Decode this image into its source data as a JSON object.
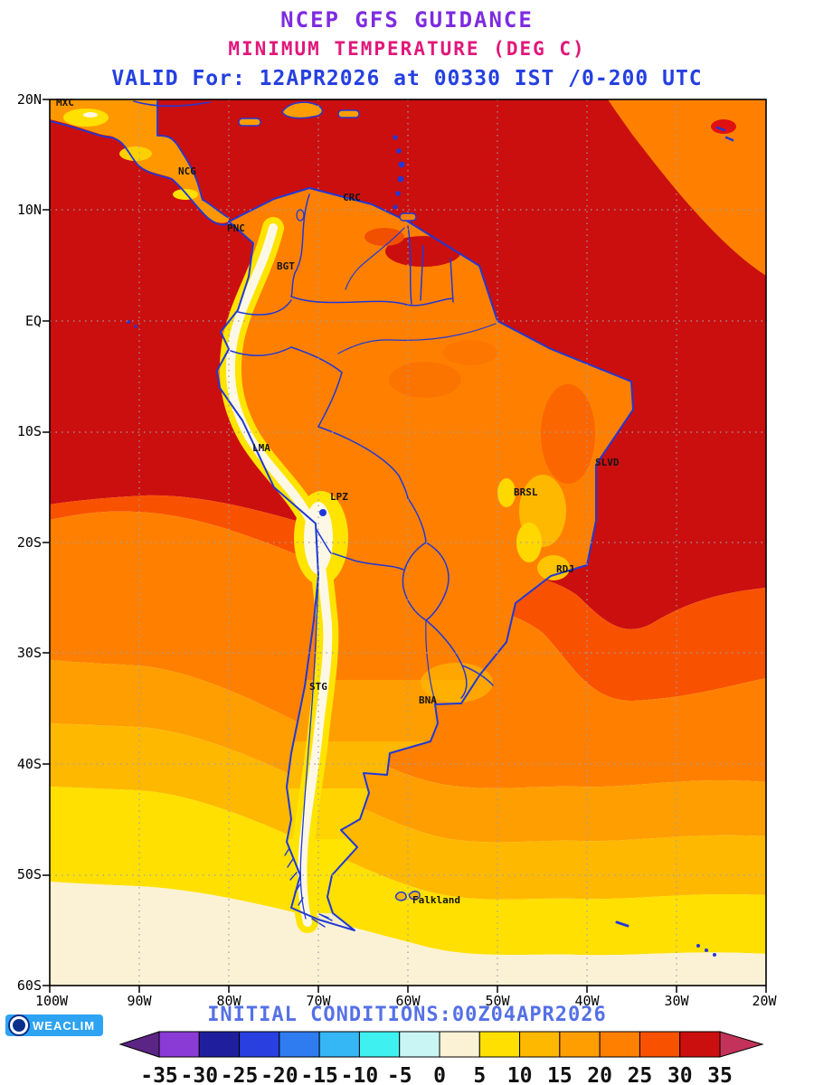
{
  "header": {
    "line1": "NCEP GFS GUIDANCE",
    "line2": "MINIMUM TEMPERATURE (DEG C)",
    "line3": "VALID For: 12APR2026 at 00330 IST /0-200 UTC",
    "line1_color": "#7d2ce0",
    "line2_color": "#e0187a",
    "line3_color": "#2540e0"
  },
  "map": {
    "lat_labels": [
      "20N",
      "10N",
      "EQ",
      "10S",
      "20S",
      "30S",
      "40S",
      "50S",
      "60S"
    ],
    "lon_labels": [
      "100W",
      "90W",
      "80W",
      "70W",
      "60W",
      "50W",
      "40W",
      "30W",
      "20W"
    ],
    "cities": [
      {
        "label": "MXC"
      },
      {
        "label": "NCG"
      },
      {
        "label": "CRC"
      },
      {
        "label": "PNC"
      },
      {
        "label": "BGT"
      },
      {
        "label": "LMA"
      },
      {
        "label": "LPZ"
      },
      {
        "label": "SLVD"
      },
      {
        "label": "BRSL"
      },
      {
        "label": "RDJ"
      },
      {
        "label": "STG"
      },
      {
        "label": "BNA"
      },
      {
        "label": "Falkland"
      }
    ],
    "colors": {
      "border": "#2038d8",
      "grid": "#9aa0a6",
      "land_base": "#ff8000",
      "andes_core": "#fdf8e6",
      "ocean_warmest": "#cb0f0f",
      "ocean_coldest": "#fbf2d5"
    }
  },
  "footer": {
    "initial_conditions": "INITIAL CONDITIONS:00Z04APR2026",
    "logo_text": "WEACLIM"
  },
  "colorbar": {
    "tick_labels": [
      "-35",
      "-30",
      "-25",
      "-20",
      "-15",
      "-10",
      "-5",
      "0",
      "5",
      "10",
      "15",
      "20",
      "25",
      "30",
      "35"
    ],
    "arrow_left_color": "#5b2585",
    "arrow_right_color": "#c33258",
    "segment_colors": [
      "#8a3bd6",
      "#1f1f9e",
      "#2a3fe0",
      "#2f7bf0",
      "#35b6f5",
      "#3ff0f0",
      "#c9f6f4",
      "#fbf2d5",
      "#ffe000",
      "#ffb800",
      "#ff9e00",
      "#ff8000",
      "#f85200",
      "#cb0f0f"
    ]
  }
}
